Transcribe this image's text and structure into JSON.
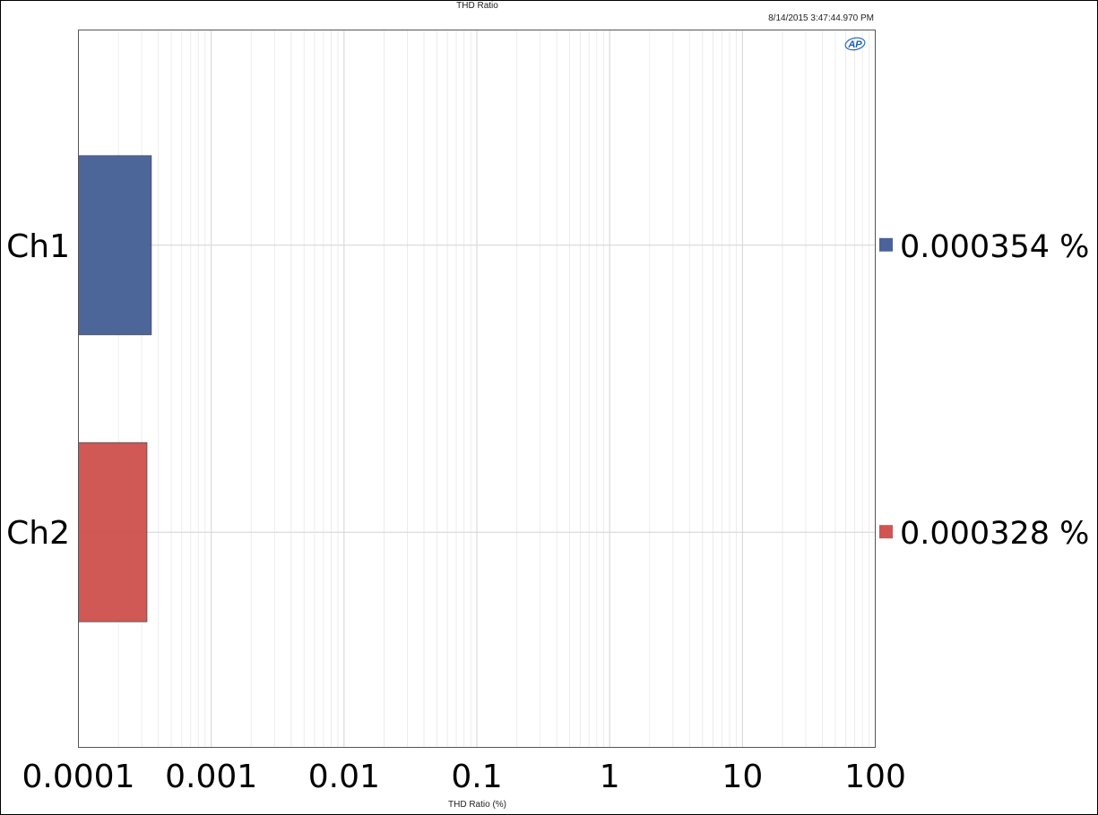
{
  "chart_data": {
    "type": "bar",
    "orientation": "horizontal",
    "title": "THD Ratio",
    "timestamp": "8/14/2015 3:47:44.970 PM",
    "xlabel": "THD Ratio (%)",
    "x_scale": "log",
    "xlim": [
      0.0001,
      100
    ],
    "x_ticks": [
      "0.0001",
      "0.001",
      "0.01",
      "0.1",
      "1",
      "10",
      "100"
    ],
    "categories": [
      "Ch1",
      "Ch2"
    ],
    "values": [
      0.000354,
      0.000328
    ],
    "value_labels": [
      "0.000354 %",
      "0.000328 %"
    ],
    "colors": [
      "#4a6399",
      "#d05552"
    ],
    "grid": true
  },
  "logo": {
    "text": "AP"
  }
}
